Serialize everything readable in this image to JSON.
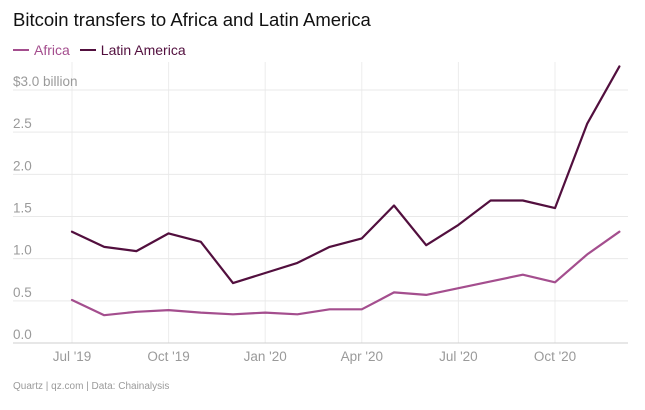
{
  "title": "Bitcoin transfers to Africa and Latin America",
  "source": "Quartz | qz.com | Data: Chainalysis",
  "chart_data": {
    "type": "line",
    "title": "Bitcoin transfers to Africa and Latin America",
    "x": [
      "Jul '19",
      "Aug '19",
      "Sep '19",
      "Oct '19",
      "Nov '19",
      "Dec '19",
      "Jan '20",
      "Feb '20",
      "Mar '20",
      "Apr '20",
      "May '20",
      "Jun '20",
      "Jul '20",
      "Aug '20",
      "Sep '20",
      "Oct '20",
      "Nov '20",
      "Dec '20"
    ],
    "x_tick_labels": [
      "Jul '19",
      "Oct '19",
      "Jan '20",
      "Apr '20",
      "Jul '20",
      "Oct '20"
    ],
    "y_tick_labels": [
      "$3.0 billion",
      "2.5",
      "2.0",
      "1.5",
      "1.0",
      "0.5",
      "0.0"
    ],
    "ylim": [
      0,
      3.0
    ],
    "grid": true,
    "legend_position": "top-left",
    "series": [
      {
        "name": "Africa",
        "color": "#a44e8e",
        "values": [
          0.51,
          0.33,
          0.37,
          0.39,
          0.36,
          0.34,
          0.36,
          0.34,
          0.4,
          0.4,
          0.6,
          0.57,
          0.65,
          0.73,
          0.81,
          0.72,
          1.05,
          1.32
        ]
      },
      {
        "name": "Latin America",
        "color": "#520f3e",
        "values": [
          1.32,
          1.14,
          1.09,
          1.3,
          1.2,
          0.71,
          0.83,
          0.95,
          1.14,
          1.24,
          1.63,
          1.16,
          1.4,
          1.69,
          1.69,
          1.6,
          2.6,
          3.28
        ]
      }
    ]
  }
}
